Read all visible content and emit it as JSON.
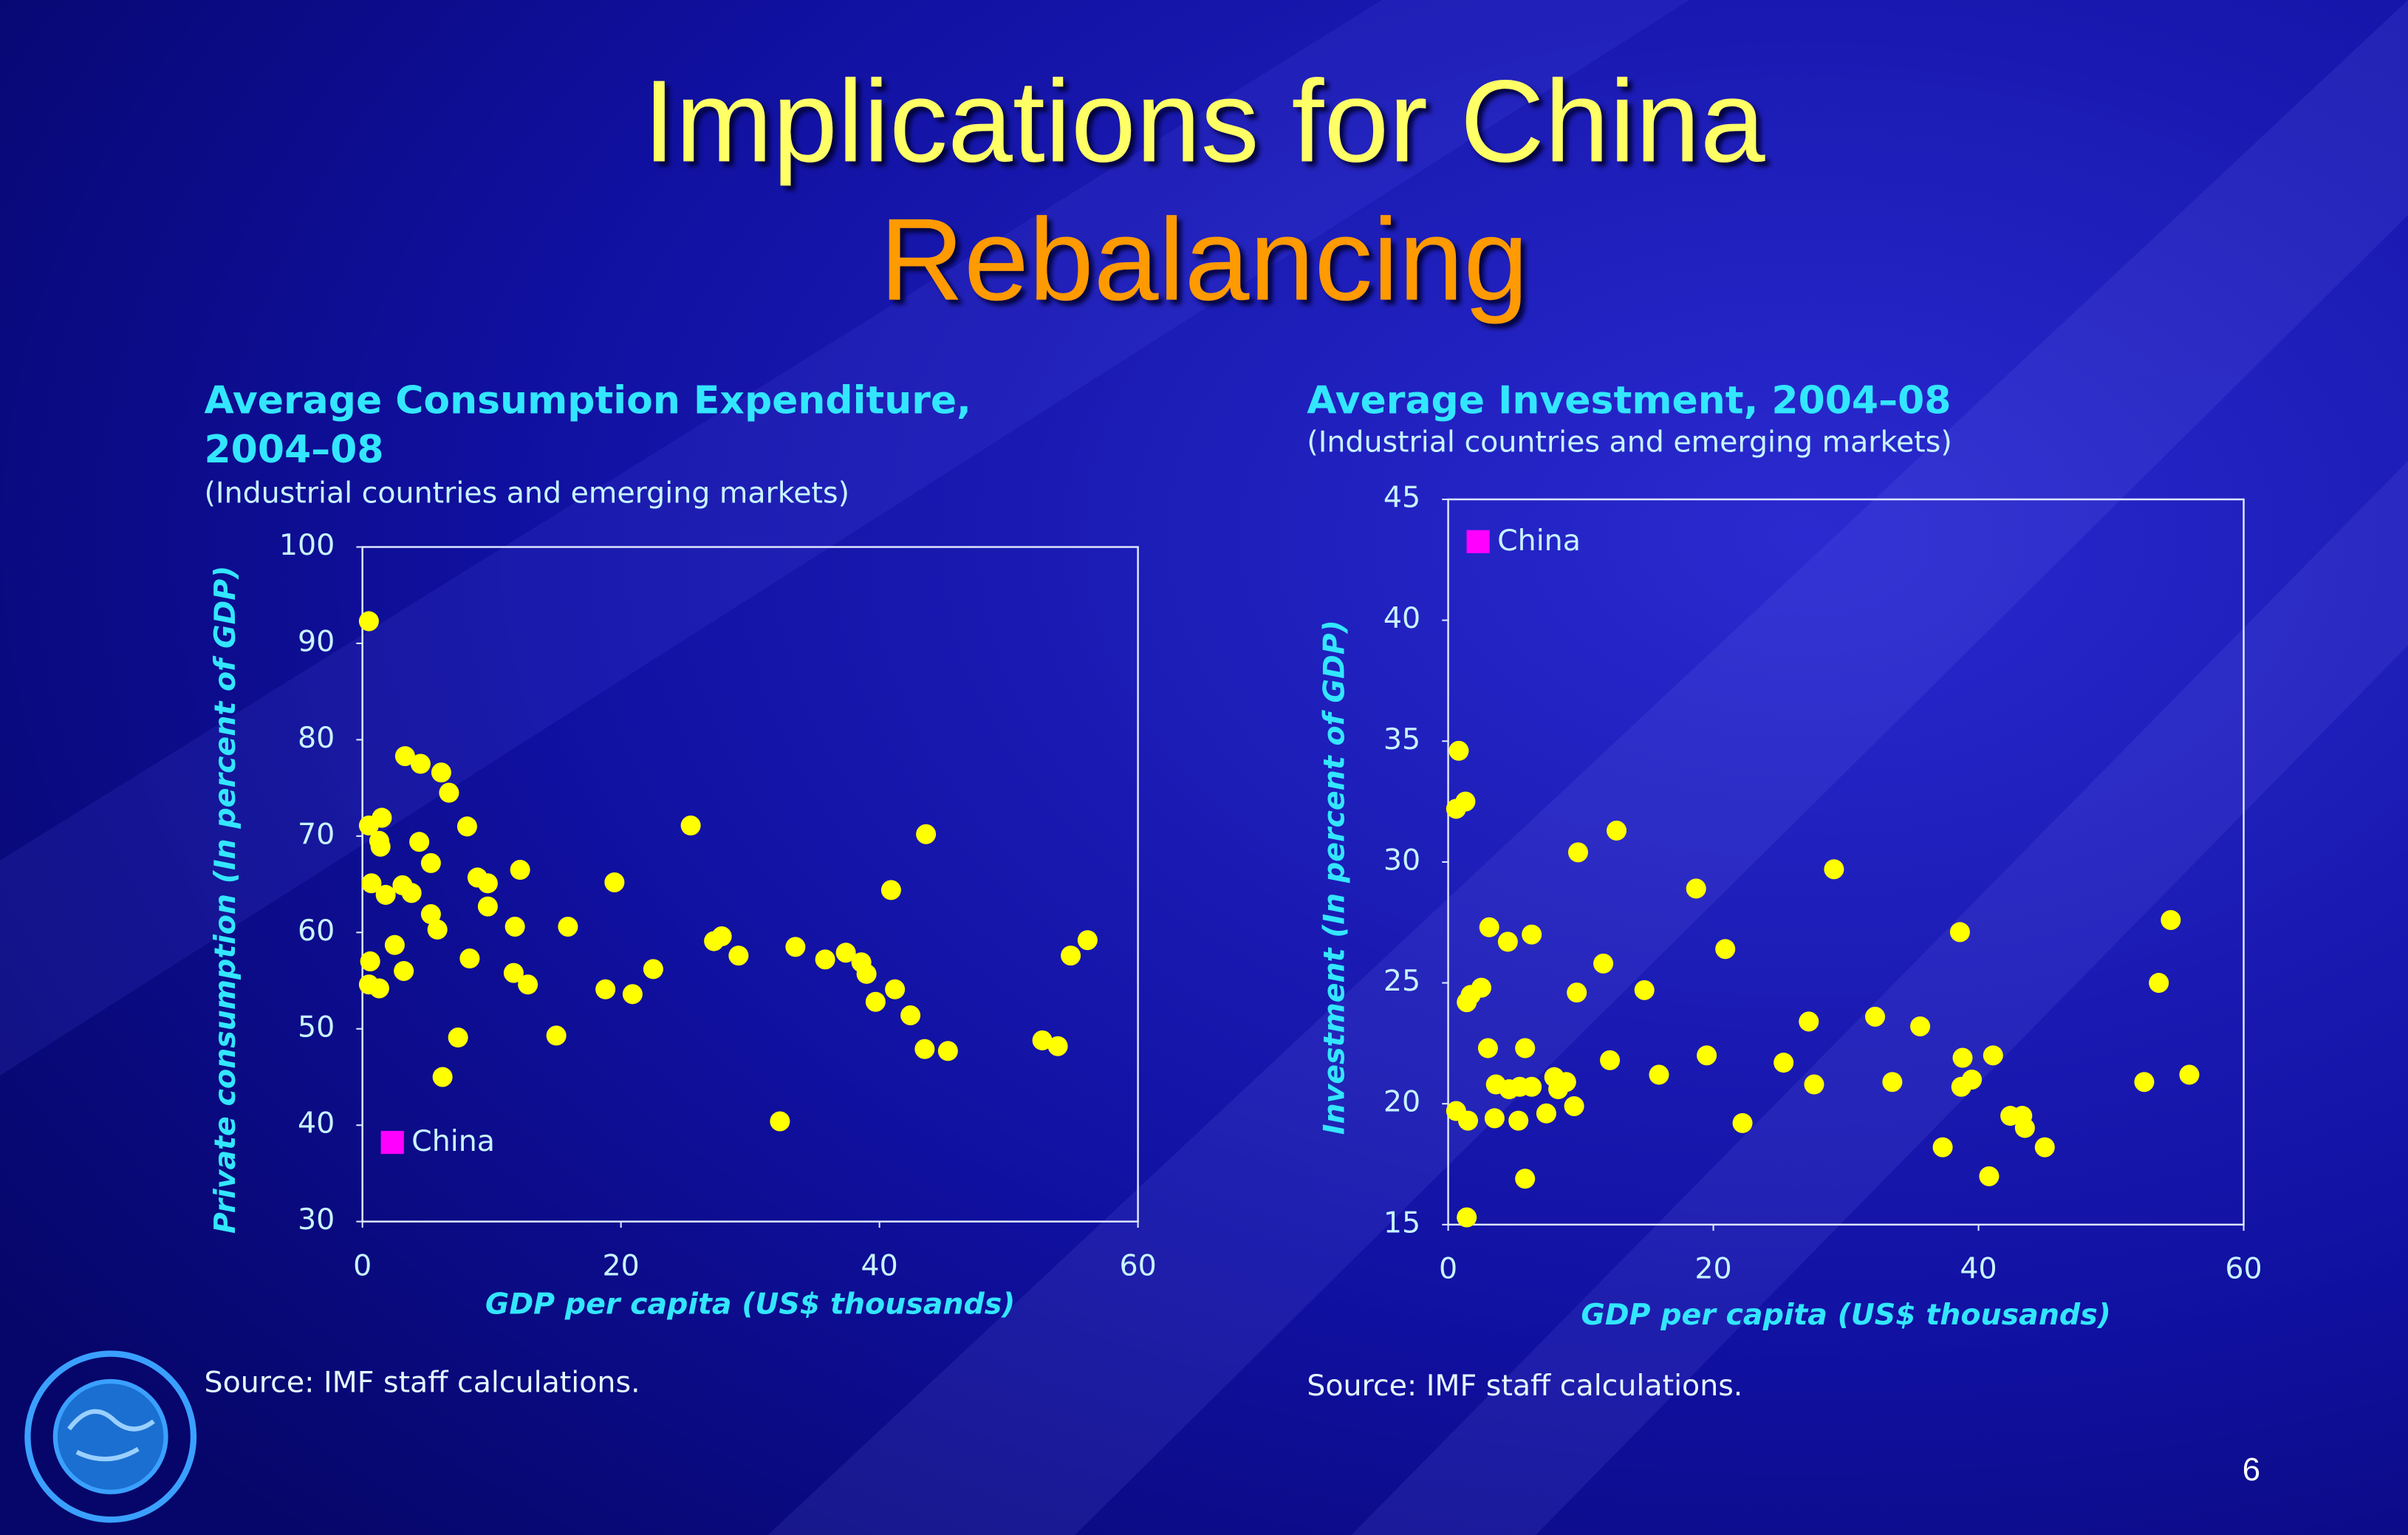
{
  "slide": {
    "title": "Implications for China",
    "subtitle": "Rebalancing",
    "page_number": 6
  },
  "chart_data": [
    {
      "type": "scatter",
      "title": "Average Consumption Expenditure, 2004–08",
      "subtitle": "(Industrial countries and emerging markets)",
      "xlabel": "GDP per capita (US$ thousands)",
      "ylabel": "Private consumption (In percent of GDP)",
      "source": "Source: IMF staff calculations.",
      "xlim": [
        0,
        60
      ],
      "xticks": [
        0,
        20,
        40,
        60
      ],
      "ylim": [
        30,
        100
      ],
      "yticks": [
        30,
        40,
        50,
        60,
        70,
        80,
        90,
        100
      ],
      "legend_items": [
        {
          "name": "China",
          "color": "#ff00ff"
        }
      ],
      "legend_position": "lower left",
      "x": [
        0.5,
        0.5,
        1.5,
        1.3,
        1.4,
        0.7,
        1.8,
        3.1,
        3.8,
        3.3,
        4.5,
        6.1,
        6.7,
        4.4,
        5.3,
        8.1,
        0.6,
        0.5,
        1.3,
        2.5,
        3.2,
        5.3,
        5.8,
        8.3,
        7.4,
        6.2,
        8.9,
        9.7,
        9.7,
        12.2,
        11.8,
        11.7,
        12.8,
        15.0,
        15.9,
        19.5,
        18.8,
        20.9,
        22.5,
        25.4,
        27.2,
        27.8,
        29.1,
        32.3,
        33.5,
        35.8,
        37.4,
        38.6,
        39.0,
        39.7,
        40.9,
        41.2,
        42.4,
        43.6,
        43.5,
        45.3,
        52.6,
        53.8,
        54.8,
        56.1
      ],
      "series": [
        {
          "color": "#ffff00",
          "values": [
            92.3,
            71.1,
            71.9,
            69.5,
            68.9,
            65.1,
            63.9,
            64.9,
            64.1,
            78.3,
            77.5,
            76.6,
            74.5,
            69.4,
            67.2,
            71.0,
            57.0,
            54.6,
            54.2,
            58.7,
            56.0,
            61.9,
            60.3,
            57.3,
            49.1,
            45.0,
            65.7,
            65.1,
            62.7,
            66.5,
            60.6,
            55.8,
            54.6,
            49.3,
            60.6,
            65.2,
            54.1,
            53.6,
            56.2,
            71.1,
            59.1,
            59.6,
            57.6,
            40.4,
            58.5,
            57.2,
            57.9,
            56.9,
            55.7,
            52.8,
            64.4,
            54.1,
            51.4,
            70.2,
            47.9,
            47.7,
            48.8,
            48.2,
            57.6,
            59.2
          ]
        }
      ]
    },
    {
      "type": "scatter",
      "title": "Average Investment, 2004–08",
      "subtitle": "(Industrial countries and emerging markets)",
      "xlabel": "GDP per capita (US$ thousands)",
      "ylabel": "Investment (In percent of GDP)",
      "source": "Source: IMF staff calculations.",
      "xlim": [
        0,
        60
      ],
      "xticks": [
        0,
        20,
        40,
        60
      ],
      "ylim": [
        15,
        45
      ],
      "yticks": [
        15,
        20,
        25,
        30,
        35,
        40,
        45
      ],
      "legend_items": [
        {
          "name": "China",
          "color": "#ff00ff"
        }
      ],
      "legend_position": "upper left",
      "x": [
        0.8,
        0.6,
        1.3,
        0.6,
        1.5,
        1.4,
        1.4,
        1.7,
        2.5,
        3.1,
        3.0,
        3.6,
        3.5,
        4.5,
        4.6,
        5.4,
        5.3,
        5.8,
        6.3,
        6.3,
        5.8,
        7.4,
        8.0,
        8.3,
        8.9,
        9.5,
        9.7,
        9.8,
        11.7,
        12.2,
        12.7,
        14.8,
        15.9,
        18.7,
        19.5,
        20.9,
        22.2,
        25.3,
        27.2,
        27.6,
        29.1,
        32.2,
        33.5,
        35.6,
        37.3,
        38.6,
        38.8,
        38.7,
        39.5,
        41.1,
        40.8,
        42.4,
        43.3,
        43.5,
        45.0,
        52.5,
        53.6,
        54.5,
        55.9
      ],
      "series": [
        {
          "color": "#ffff00",
          "values": [
            34.6,
            32.2,
            32.5,
            19.7,
            19.3,
            15.3,
            24.2,
            24.5,
            24.8,
            27.3,
            22.3,
            20.8,
            19.4,
            26.7,
            20.6,
            20.7,
            19.3,
            22.3,
            27.0,
            20.7,
            16.9,
            19.6,
            21.1,
            20.6,
            20.9,
            19.9,
            24.6,
            30.4,
            25.8,
            21.8,
            31.3,
            24.7,
            21.2,
            28.9,
            22.0,
            26.4,
            19.2,
            21.7,
            23.4,
            20.8,
            29.7,
            23.6,
            20.9,
            23.2,
            18.2,
            27.1,
            21.9,
            20.7,
            21.0,
            22.0,
            17.0,
            19.5,
            19.5,
            19.0,
            18.2,
            20.9,
            25.0,
            27.6,
            21.2
          ]
        }
      ]
    }
  ]
}
